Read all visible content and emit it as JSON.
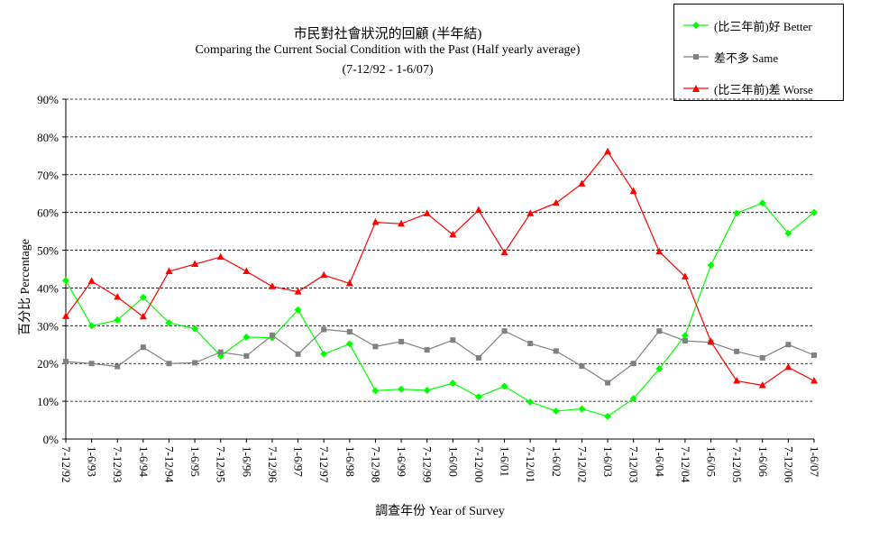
{
  "chart_data": {
    "type": "line",
    "title": "市民對社會狀況的回顧 (半年結)",
    "subtitle": "Comparing the Current Social Condition with the Past  (Half yearly average)",
    "period": "(7-12/92 - 1-6/07)",
    "xlabel": "調查年份 Year of Survey",
    "ylabel": "百分比 Percentage",
    "ylim": [
      0,
      90
    ],
    "yticks": [
      "0%",
      "10%",
      "20%",
      "30%",
      "40%",
      "50%",
      "60%",
      "70%",
      "80%",
      "90%"
    ],
    "grid": true,
    "legend_position": "top-right",
    "categories": [
      "7-12/92",
      "1-6/93",
      "7-12/93",
      "1-6/94",
      "7-12/94",
      "1-6/95",
      "7-12/95",
      "1-6/96",
      "7-12/96",
      "1-6/97",
      "7-12/97",
      "1-6/98",
      "7-12/98",
      "1-6/99",
      "7-12/99",
      "1-6/00",
      "7-12/00",
      "1-6/01",
      "7-12/01",
      "1-6/02",
      "7-12/02",
      "1-6/03",
      "7-12/03",
      "1-6/04",
      "7-12/04",
      "1-6/05",
      "7-12/05",
      "1-6/06",
      "7-12/06",
      "1-6/07"
    ],
    "series": [
      {
        "name": "(比三年前)好 Better",
        "color": "#00ff00",
        "marker": "diamond",
        "values": [
          42.0,
          30.0,
          31.5,
          37.5,
          30.8,
          29.2,
          22.0,
          27.0,
          26.8,
          34.2,
          22.5,
          25.2,
          12.8,
          13.2,
          12.9,
          14.8,
          11.2,
          14.0,
          9.8,
          7.4,
          8.0,
          6.0,
          10.7,
          18.6,
          27.4,
          46.0,
          59.8,
          62.5,
          54.5,
          60.0
        ]
      },
      {
        "name": "差不多 Same",
        "color": "#808080",
        "marker": "square",
        "values": [
          20.5,
          20.0,
          19.2,
          24.3,
          20.0,
          20.2,
          23.0,
          22.0,
          27.5,
          22.5,
          29.0,
          28.4,
          24.5,
          25.8,
          23.6,
          26.2,
          21.5,
          28.6,
          25.3,
          23.3,
          19.3,
          14.9,
          20.0,
          28.6,
          26.0,
          25.6,
          23.2,
          21.5,
          25.0,
          22.2
        ]
      },
      {
        "name": "(比三年前)差 Worse",
        "color": "#ff0000",
        "marker": "triangle",
        "values": [
          32.5,
          41.8,
          37.6,
          32.4,
          44.4,
          46.3,
          48.2,
          44.4,
          40.4,
          39.0,
          43.4,
          41.2,
          57.4,
          57.0,
          59.7,
          54.1,
          60.6,
          49.4,
          59.7,
          62.5,
          67.6,
          76.1,
          65.6,
          49.6,
          43.0,
          25.8,
          15.4,
          14.2,
          19.0,
          15.4
        ]
      }
    ]
  }
}
